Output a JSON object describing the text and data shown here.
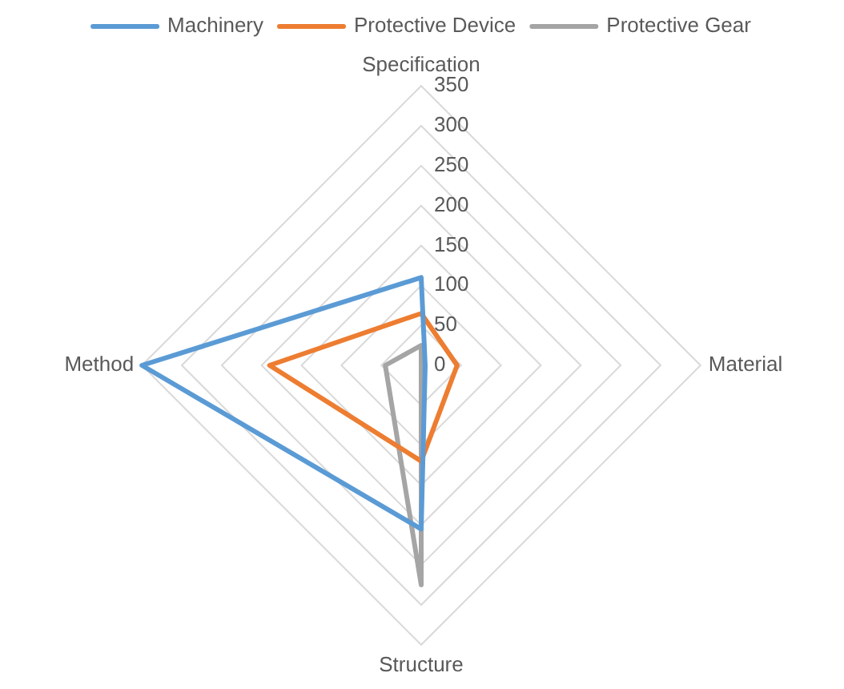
{
  "chart_data": {
    "type": "radar",
    "categories": [
      "Specification",
      "Material",
      "Structure",
      "Method"
    ],
    "series": [
      {
        "name": "Machinery",
        "color": "#5b9bd5",
        "values": [
          110,
          5,
          205,
          350
        ]
      },
      {
        "name": "Protective Device",
        "color": "#ed7d31",
        "values": [
          65,
          45,
          120,
          190
        ]
      },
      {
        "name": "Protective Gear",
        "color": "#a5a5a5",
        "values": [
          25,
          0,
          275,
          45
        ]
      }
    ],
    "ylim": [
      0,
      350
    ],
    "yticks": [
      0,
      50,
      100,
      150,
      200,
      250,
      300,
      350
    ],
    "grid": true,
    "legend": "top",
    "marker": "none"
  }
}
